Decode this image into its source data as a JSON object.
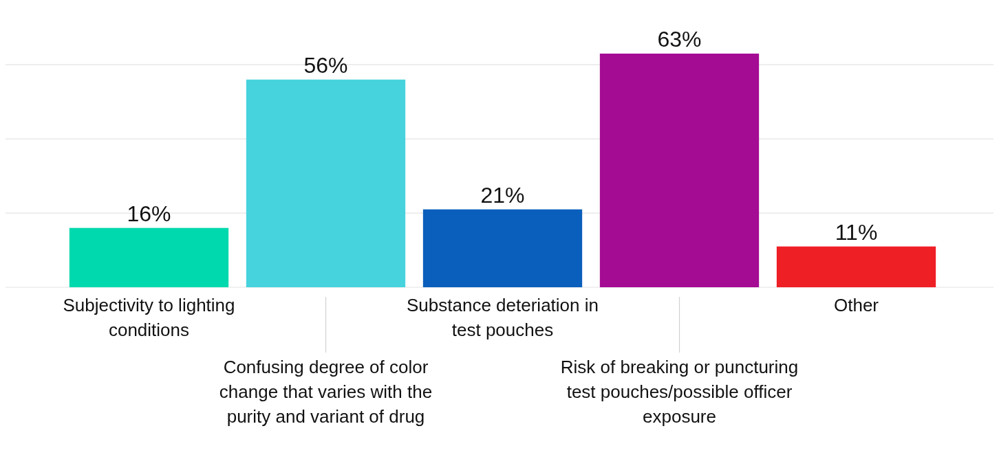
{
  "chart_data": {
    "type": "bar",
    "categories": [
      "Subjectivity to lighting conditions",
      "Confusing degree of color change that varies with the purity and variant of drug",
      "Substance deteriation in test pouches",
      "Risk of breaking or puncturing test pouches/possible officer exposure",
      "Other"
    ],
    "values": [
      16,
      56,
      21,
      63,
      11
    ],
    "colors": [
      "#00d9ae",
      "#47d3dd",
      "#0b5fbc",
      "#a40c94",
      "#ef1f26"
    ],
    "value_labels": [
      "16%",
      "56%",
      "21%",
      "63%",
      "11%"
    ],
    "yticks": [
      {
        "value": 0,
        "label": null
      },
      {
        "value": 20,
        "label": null
      },
      {
        "value": 40,
        "label": null
      },
      {
        "value": 60,
        "label": null
      }
    ],
    "grid": "y",
    "tick_labels": "x"
  }
}
